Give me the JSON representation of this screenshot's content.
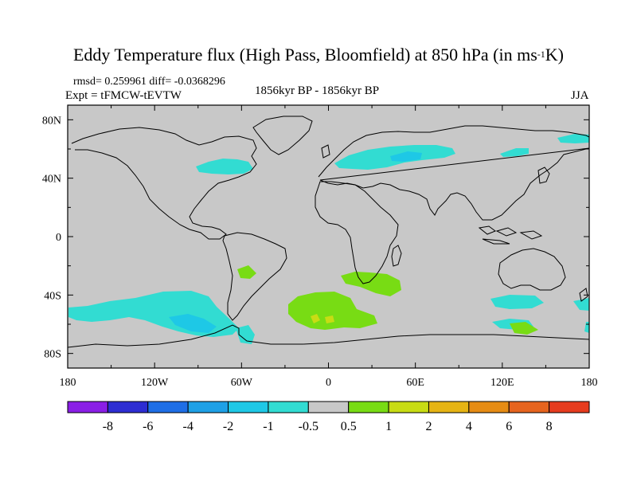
{
  "header": {
    "title_main": "Eddy Temperature flux (High Pass, Bloomfield) at 850 hPa (in ms",
    "title_sup": "-1",
    "title_tail": "K)",
    "stats": "rmsd= 0.259961  diff= -0.0368296",
    "experiment": "Expt = tFMCW-tEVTW",
    "period": "1856kyr BP - 1856kyr BP",
    "season": "JJA"
  },
  "map": {
    "background_color": "#c8c8c8",
    "coastline_color": "#000000",
    "x_ticks": [
      "180",
      "120W",
      "60W",
      "0",
      "60E",
      "120E",
      "180"
    ],
    "y_ticks": [
      "80N",
      "40N",
      "0",
      "40S",
      "80S"
    ]
  },
  "colorbar": {
    "colors": [
      "#8a1ee6",
      "#2d2dd2",
      "#1e6ee6",
      "#1ea0e6",
      "#1ec8e6",
      "#32dcd2",
      "#c8c8c8",
      "#78dc14",
      "#c8dc14",
      "#e6b414",
      "#e68c14",
      "#e6641e",
      "#e63c1e"
    ],
    "labels": [
      "-8",
      "-6",
      "-4",
      "-2",
      "-1",
      "-0.5",
      "0.5",
      "1",
      "2",
      "4",
      "6",
      "8"
    ]
  },
  "colors": {
    "negative_light": "#32dcd2",
    "negative_mid": "#1ec8e6",
    "positive_light": "#78dc14",
    "positive_mid": "#c8dc14"
  }
}
